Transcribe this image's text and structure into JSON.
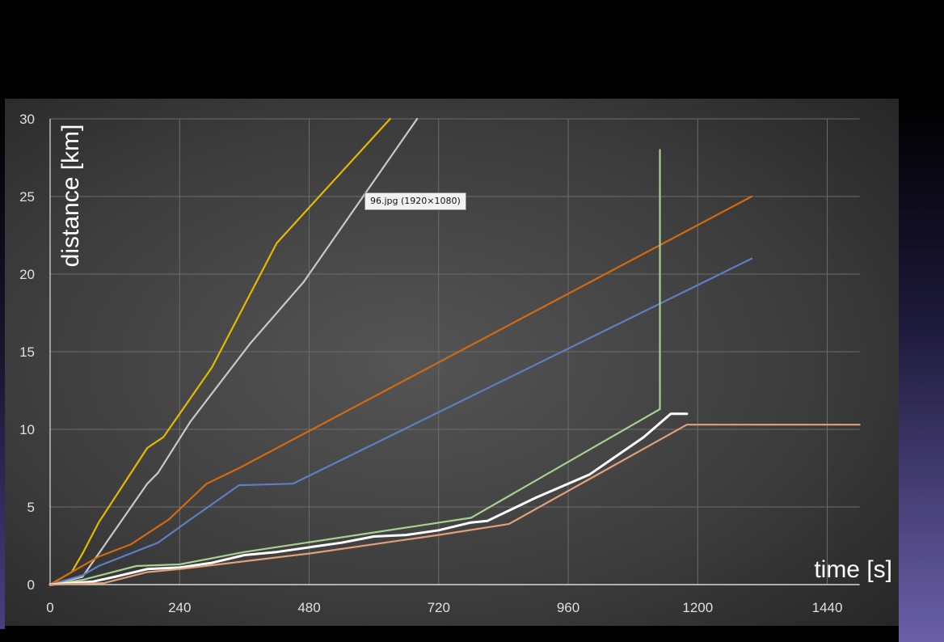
{
  "tooltip": "96.jpg (1920×1080)",
  "chart_data": {
    "type": "line",
    "xlabel": "time [s]",
    "ylabel": "distance [km]",
    "xlim": [
      0,
      1500
    ],
    "ylim": [
      0,
      30
    ],
    "xticks": [
      0,
      240,
      480,
      720,
      960,
      1200,
      1440
    ],
    "yticks": [
      0,
      5,
      10,
      15,
      20,
      25,
      30
    ],
    "grid": true,
    "series": [
      {
        "color": "#e6b800",
        "x": [
          0,
          40,
          60,
          90,
          180,
          210,
          300,
          420,
          630
        ],
        "y": [
          0,
          0.8,
          2,
          4,
          8.8,
          9.5,
          14,
          22,
          30
        ]
      },
      {
        "color": "#c8c8c8",
        "x": [
          0,
          60,
          110,
          180,
          200,
          260,
          370,
          470,
          680
        ],
        "y": [
          0,
          0.5,
          3,
          6.5,
          7.2,
          10.5,
          15.5,
          19.5,
          30
        ]
      },
      {
        "color": "#d26a10",
        "x": [
          0,
          40,
          90,
          150,
          220,
          290,
          350,
          1300
        ],
        "y": [
          0,
          0.8,
          1.8,
          2.6,
          4.2,
          6.5,
          7.5,
          25
        ]
      },
      {
        "color": "#5c7fc4",
        "x": [
          0,
          60,
          90,
          200,
          260,
          350,
          450,
          1300
        ],
        "y": [
          0,
          0.6,
          1.2,
          2.7,
          4.2,
          6.4,
          6.5,
          21
        ]
      },
      {
        "color": "#a8d090",
        "x": [
          0,
          60,
          160,
          240,
          360,
          780,
          1130,
          1130
        ],
        "y": [
          0,
          0.3,
          1.2,
          1.3,
          2.1,
          4.3,
          11.3,
          28
        ]
      },
      {
        "color": "#ffffff",
        "x": [
          0,
          80,
          120,
          180,
          240,
          300,
          360,
          420,
          480,
          540,
          600,
          660,
          720,
          780,
          810,
          900,
          1000,
          1100,
          1150,
          1180
        ],
        "y": [
          0,
          0.2,
          0.5,
          1,
          1.1,
          1.4,
          1.9,
          2.1,
          2.4,
          2.7,
          3.1,
          3.2,
          3.5,
          4,
          4.1,
          5.6,
          7.1,
          9.5,
          11,
          11
        ]
      },
      {
        "color": "#e0a078",
        "x": [
          0,
          100,
          180,
          240,
          480,
          720,
          850,
          1180,
          1500
        ],
        "y": [
          0,
          0.1,
          0.8,
          1,
          2,
          3.2,
          3.9,
          10.3,
          10.3
        ]
      }
    ]
  }
}
